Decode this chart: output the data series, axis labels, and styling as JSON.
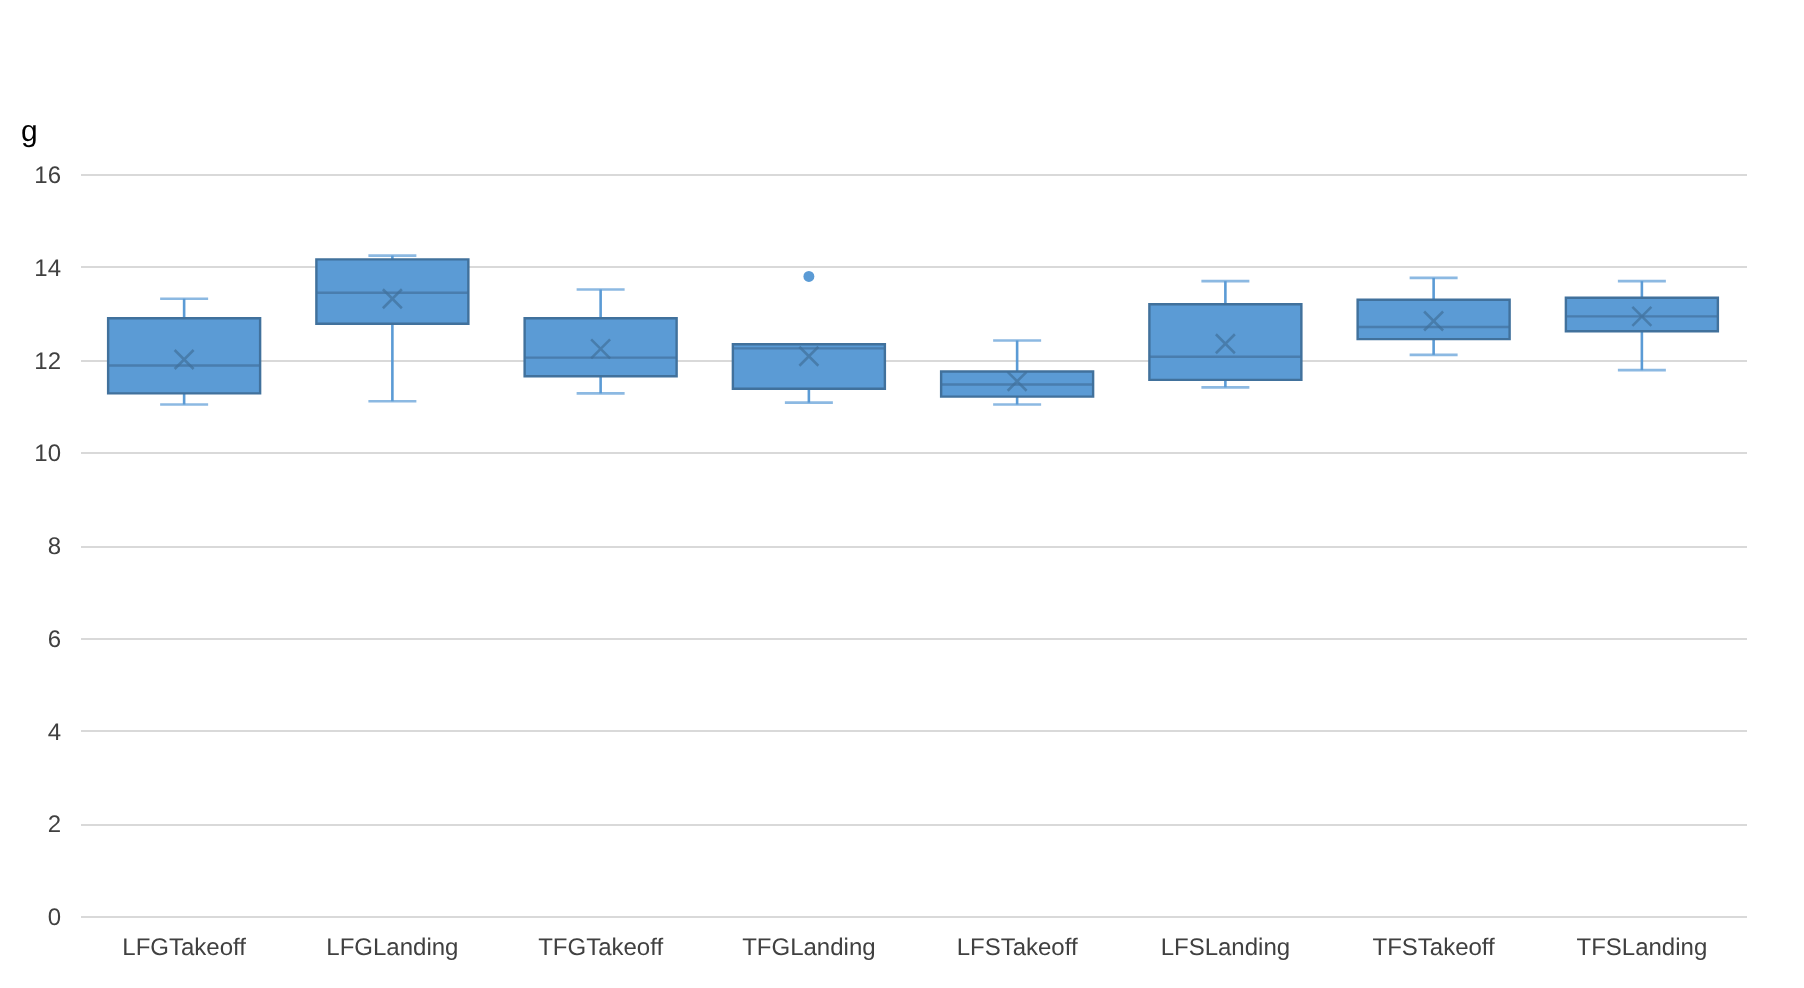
{
  "chart_data": {
    "type": "box",
    "ylabel": "g",
    "categories": [
      "LFGTakeoff",
      "LFGLanding",
      "TFGTakeoff",
      "TFGLanding",
      "LFSTakeoff",
      "LFSLanding",
      "TFSTakeoff",
      "TFSLanding"
    ],
    "series": [
      {
        "color": "#5b9bd5",
        "boxes": [
          {
            "low": 11.03,
            "q1": 11.27,
            "median": 11.87,
            "q3": 12.89,
            "high": 13.31,
            "mean": 12.0
          },
          {
            "low": 11.1,
            "q1": 12.77,
            "median": 13.44,
            "q3": 14.16,
            "high": 14.24,
            "mean": 13.31
          },
          {
            "low": 11.27,
            "q1": 11.64,
            "median": 12.04,
            "q3": 12.89,
            "high": 13.51,
            "mean": 12.23
          },
          {
            "low": 11.07,
            "q1": 11.37,
            "median": 12.24,
            "q3": 12.33,
            "high": 12.33,
            "mean": 12.07,
            "outliers": [
              13.79
            ]
          },
          {
            "low": 11.03,
            "q1": 11.2,
            "median": 11.46,
            "q3": 11.74,
            "high": 12.41,
            "mean": 11.53
          },
          {
            "low": 11.4,
            "q1": 11.56,
            "median": 12.06,
            "q3": 13.19,
            "high": 13.69,
            "mean": 12.34
          },
          {
            "low": 12.1,
            "q1": 12.44,
            "median": 12.7,
            "q3": 13.29,
            "high": 13.76,
            "mean": 12.83
          },
          {
            "low": 11.77,
            "q1": 12.61,
            "median": 12.93,
            "q3": 13.33,
            "high": 13.69,
            "mean": 12.93
          }
        ]
      }
    ],
    "ylim": [
      0,
      16
    ],
    "yticks": [
      0,
      2,
      4,
      6,
      8,
      10,
      12,
      14,
      16
    ],
    "grid": "y"
  }
}
